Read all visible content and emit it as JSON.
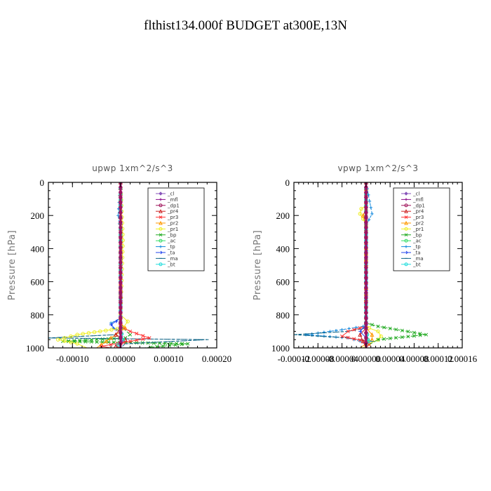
{
  "title": "flthist134.000f  BUDGET at300E,13N",
  "legend_entries": [
    "_cl",
    "_mfl",
    "_dp1",
    "_pr4",
    "_pr3",
    "_pr2",
    "_pr1",
    "_bp",
    "_ac",
    "_tp",
    "_ta",
    "_ma",
    "_bt"
  ],
  "series_colors": {
    "_cl": "#8855bb",
    "_mfl": "#8a0c8a",
    "_dp1": "#a0145a",
    "_pr4": "#cc2222",
    "_pr3": "#ff3333",
    "_pr2": "#ff9900",
    "_pr1": "#eeee22",
    "_bp": "#22aa22",
    "_ac": "#33dd66",
    "_tp": "#1188dd",
    "_ta": "#2244ee",
    "_ma": "#116688",
    "_bt": "#22dddd"
  },
  "chart_data": [
    {
      "type": "line",
      "title": "upwp   1xm^2/s^3",
      "ylabel": "Pressure [hPa]",
      "xlabel": "",
      "ylim": [
        1000,
        0
      ],
      "xlim": [
        -0.00015,
        0.0002
      ],
      "xticks": [
        "-0.00010",
        "0.00000",
        "0.00010",
        "0.00020"
      ],
      "xtick_values": [
        -0.0001,
        0,
        0.0001,
        0.0002
      ],
      "yticks": [
        "0",
        "200",
        "400",
        "600",
        "800",
        "1000"
      ],
      "ytick_values": [
        0,
        200,
        400,
        600,
        800,
        1000
      ],
      "legend": "top-right",
      "series": [
        {
          "name": "_bp",
          "x": [
            0,
            0,
            5e-06,
            2e-05,
            1e-05,
            -0.00012,
            0.00014,
            5e-05
          ],
          "y": [
            0,
            840,
            880,
            920,
            940,
            960,
            975,
            1000
          ]
        },
        {
          "name": "_ma",
          "x": [
            0,
            0,
            -1e-05,
            -0.00015,
            0.00018,
            1e-05,
            0
          ],
          "y": [
            0,
            880,
            920,
            940,
            950,
            975,
            1000
          ]
        },
        {
          "name": "_tp",
          "x": [
            0,
            -5e-06,
            0,
            0,
            -2e-05,
            -1.5e-05,
            0
          ],
          "y": [
            0,
            200,
            300,
            820,
            850,
            880,
            900
          ]
        },
        {
          "name": "_ta",
          "x": [
            0,
            0,
            -2e-05,
            -1e-05,
            0
          ],
          "y": [
            0,
            820,
            860,
            890,
            900
          ]
        },
        {
          "name": "_pr1",
          "x": [
            0,
            5e-06,
            0,
            1.5e-05,
            5e-06,
            -9e-05,
            -0.00013,
            -9e-05,
            -7e-05
          ],
          "y": [
            0,
            350,
            800,
            840,
            880,
            920,
            950,
            975,
            1000
          ]
        },
        {
          "name": "_pr2",
          "x": [
            0,
            0,
            1e-05,
            -3e-05,
            -5e-05
          ],
          "y": [
            0,
            850,
            880,
            960,
            1000
          ]
        },
        {
          "name": "_pr3",
          "x": [
            0,
            0,
            2e-05,
            6e-05,
            2e-05,
            -2e-05,
            -4e-05,
            -2e-05
          ],
          "y": [
            0,
            870,
            900,
            940,
            960,
            980,
            990,
            1000
          ]
        },
        {
          "name": "_pr4",
          "x": [
            0,
            0,
            -1e-05,
            1e-05,
            -1e-05,
            0
          ],
          "y": [
            0,
            880,
            920,
            950,
            990,
            1000
          ]
        },
        {
          "name": "_ac",
          "x": [
            0,
            0,
            3e-06,
            0
          ],
          "y": [
            0,
            880,
            950,
            1000
          ]
        },
        {
          "name": "_bt",
          "x": [
            0,
            0,
            5e-06,
            -5e-06,
            0
          ],
          "y": [
            0,
            880,
            950,
            980,
            1000
          ]
        },
        {
          "name": "_cl",
          "x": [
            0,
            0,
            2e-06,
            0
          ],
          "y": [
            0,
            900,
            960,
            1000
          ]
        },
        {
          "name": "_mfl",
          "x": [
            0,
            0
          ],
          "y": [
            0,
            1000
          ]
        },
        {
          "name": "_dp1",
          "x": [
            0,
            0
          ],
          "y": [
            0,
            1000
          ]
        }
      ]
    },
    {
      "type": "line",
      "title": "vpwp   1xm^2/s^3",
      "ylabel": "Pressure [hPa]",
      "xlabel": "",
      "ylim": [
        1000,
        0
      ],
      "xlim": [
        -0.00012,
        0.00016
      ],
      "xticks": [
        "-0.00012",
        "-0.00008",
        "-0.00004",
        "0.00000",
        "0.00004",
        "0.00008",
        "0.00012",
        "0.00016"
      ],
      "xtick_values": [
        -0.00012,
        -8e-05,
        -4e-05,
        0,
        4e-05,
        8e-05,
        0.00012,
        0.00016
      ],
      "yticks": [
        "0",
        "200",
        "400",
        "600",
        "800",
        "1000"
      ],
      "ytick_values": [
        0,
        200,
        400,
        600,
        800,
        1000
      ],
      "legend": "top-right",
      "series": [
        {
          "name": "_pr1",
          "x": [
            0,
            0,
            -8e-06,
            -1e-05,
            -5e-06,
            0,
            0,
            5e-06,
            2e-05,
            2.5e-05,
            2e-05,
            5e-06,
            -5e-06
          ],
          "y": [
            0,
            140,
            160,
            190,
            220,
            260,
            860,
            880,
            900,
            930,
            950,
            975,
            1000
          ]
        },
        {
          "name": "_pr2",
          "x": [
            0,
            0,
            -5e-06,
            0,
            0,
            1e-05,
            1e-05,
            -1e-05
          ],
          "y": [
            0,
            160,
            200,
            260,
            880,
            920,
            950,
            1000
          ]
        },
        {
          "name": "_tp",
          "x": [
            0,
            1e-05,
            0,
            0,
            -5e-06,
            -4e-05,
            -0.0001,
            -3e-05,
            -1e-05,
            0
          ],
          "y": [
            0,
            190,
            260,
            850,
            870,
            890,
            920,
            940,
            960,
            980
          ]
        },
        {
          "name": "_ma",
          "x": [
            0,
            0,
            -3e-05,
            -0.00012,
            -3e-05,
            1e-05,
            0
          ],
          "y": [
            0,
            880,
            900,
            920,
            940,
            960,
            975
          ]
        },
        {
          "name": "_bp",
          "x": [
            0,
            0,
            2e-05,
            0.0001,
            2e-05,
            5e-06,
            0
          ],
          "y": [
            0,
            850,
            870,
            920,
            950,
            980,
            1000
          ]
        },
        {
          "name": "_pr3",
          "x": [
            0,
            0,
            -3e-05,
            -4e-05,
            0,
            5e-06,
            0
          ],
          "y": [
            0,
            870,
            900,
            930,
            960,
            980,
            1000
          ]
        },
        {
          "name": "_pr4",
          "x": [
            0,
            0,
            -1e-05,
            -5e-06,
            0
          ],
          "y": [
            0,
            880,
            920,
            960,
            1000
          ]
        },
        {
          "name": "_ta",
          "x": [
            0,
            0,
            -1e-05,
            0
          ],
          "y": [
            0,
            860,
            900,
            940
          ]
        },
        {
          "name": "_ac",
          "x": [
            0,
            0,
            3e-06,
            0
          ],
          "y": [
            0,
            880,
            950,
            1000
          ]
        },
        {
          "name": "_bt",
          "x": [
            0,
            0,
            4e-06,
            0
          ],
          "y": [
            0,
            880,
            960,
            1000
          ]
        },
        {
          "name": "_cl",
          "x": [
            0,
            0
          ],
          "y": [
            0,
            1000
          ]
        },
        {
          "name": "_mfl",
          "x": [
            0,
            0
          ],
          "y": [
            0,
            1000
          ]
        },
        {
          "name": "_dp1",
          "x": [
            0,
            0
          ],
          "y": [
            0,
            1000
          ]
        }
      ]
    }
  ]
}
